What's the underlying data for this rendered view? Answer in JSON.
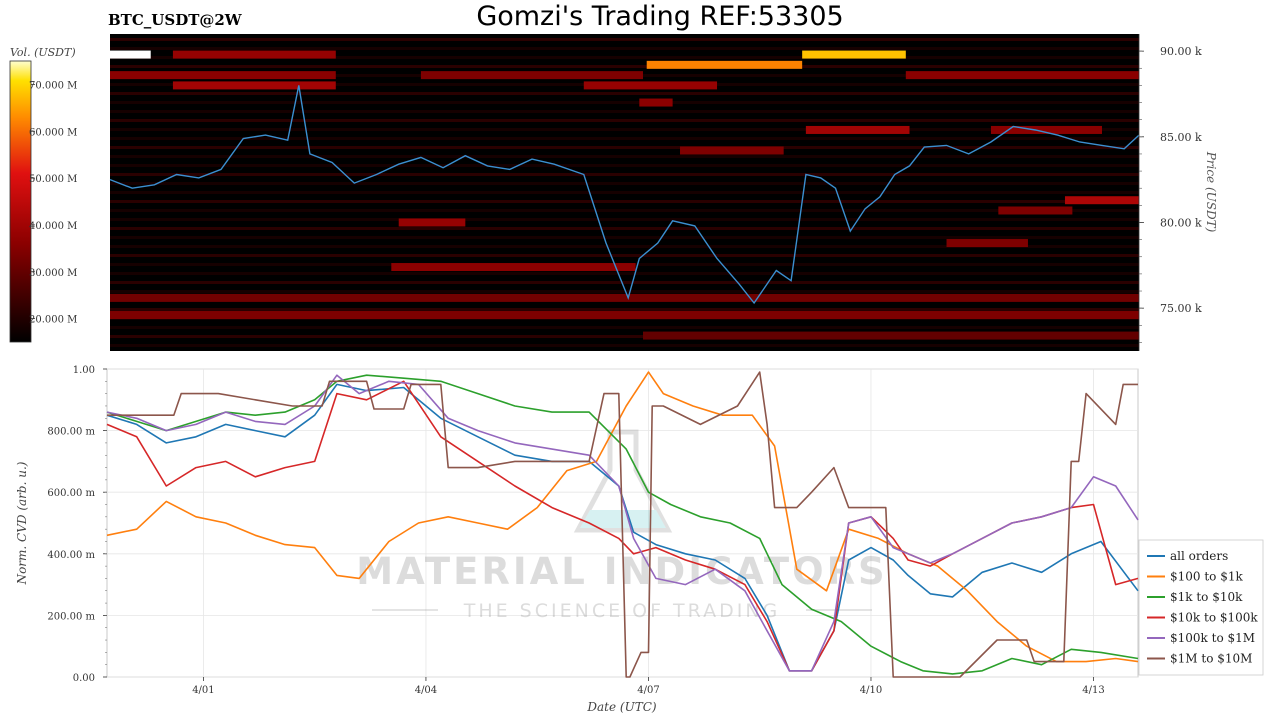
{
  "header": {
    "symbol": "BTC_USDT@2W",
    "title": "Gomzi's Trading REF:53305"
  },
  "watermark": {
    "main": "MATERIAL INDICATORS",
    "sub": "THE SCIENCE OF TRADING"
  },
  "colors": {
    "heatmap_bg": "#000000",
    "price_line": "#3b8fd0",
    "all_orders": "#1f77b4",
    "100_1k": "#ff7f0e",
    "1k_10k": "#2ca02c",
    "10k_100k": "#d62728",
    "100k_1m": "#9467bd",
    "1m_10m": "#8c564b"
  },
  "chart_data": [
    {
      "type": "heatmap",
      "colorbar": {
        "label": "Vol. (USDT)",
        "ticks": [
          "70.000 M",
          "60.000 M",
          "50.000 M",
          "40.000 M",
          "30.000 M",
          "20.000 M"
        ],
        "range": [
          15,
          75
        ]
      },
      "ylabel": "Price (USDT)",
      "ylim": [
        72500,
        91000
      ],
      "yticks": [
        "90.00 k",
        "85.00 k",
        "80.00 k",
        "75.00 k"
      ],
      "xlim": [
        0,
        13.9
      ],
      "price_series": {
        "name": "price",
        "x": [
          0,
          0.3,
          0.6,
          0.9,
          1.2,
          1.5,
          1.8,
          2.1,
          2.4,
          2.55,
          2.7,
          3.0,
          3.3,
          3.6,
          3.9,
          4.2,
          4.5,
          4.8,
          5.1,
          5.4,
          5.7,
          6.0,
          6.4,
          6.7,
          6.85,
          7.0,
          7.15,
          7.4,
          7.6,
          7.9,
          8.2,
          8.5,
          8.7,
          9.0,
          9.2,
          9.4,
          9.6,
          9.8,
          10.0,
          10.2,
          10.4,
          10.6,
          10.8,
          11.0,
          11.3,
          11.6,
          11.9,
          12.2,
          12.5,
          12.8,
          13.1,
          13.4,
          13.7,
          13.9
        ],
        "y": [
          82500,
          82000,
          82200,
          82800,
          82600,
          83100,
          84900,
          85100,
          84800,
          88000,
          84000,
          83500,
          82300,
          82800,
          83400,
          83800,
          83200,
          83900,
          83300,
          83100,
          83700,
          83400,
          82800,
          78800,
          77200,
          75600,
          77900,
          78800,
          80100,
          79800,
          77900,
          76400,
          75300,
          77200,
          76600,
          82800,
          82600,
          82000,
          79500,
          80800,
          81500,
          82800,
          83300,
          84400,
          84500,
          84000,
          84700,
          85600,
          85400,
          85100,
          84700,
          84500,
          84300,
          85100
        ]
      },
      "bands": [
        {
          "price": 89800,
          "x0": 0.0,
          "x1": 0.55,
          "value": 75
        },
        {
          "price": 89800,
          "x0": 0.85,
          "x1": 3.05,
          "value": 38
        },
        {
          "price": 89800,
          "x0": 9.35,
          "x1": 10.75,
          "value": 68
        },
        {
          "price": 89200,
          "x0": 7.25,
          "x1": 9.35,
          "value": 62
        },
        {
          "price": 88600,
          "x0": 0.0,
          "x1": 3.05,
          "value": 36
        },
        {
          "price": 88600,
          "x0": 4.2,
          "x1": 7.2,
          "value": 34
        },
        {
          "price": 88600,
          "x0": 10.75,
          "x1": 13.9,
          "value": 36
        },
        {
          "price": 88000,
          "x0": 0.85,
          "x1": 3.05,
          "value": 40
        },
        {
          "price": 88000,
          "x0": 6.4,
          "x1": 8.2,
          "value": 38
        },
        {
          "price": 87000,
          "x0": 7.15,
          "x1": 7.6,
          "value": 36
        },
        {
          "price": 85400,
          "x0": 9.4,
          "x1": 10.8,
          "value": 40
        },
        {
          "price": 85400,
          "x0": 11.9,
          "x1": 13.4,
          "value": 36
        },
        {
          "price": 84200,
          "x0": 7.7,
          "x1": 9.1,
          "value": 34
        },
        {
          "price": 81300,
          "x0": 12.9,
          "x1": 13.9,
          "value": 42
        },
        {
          "price": 80700,
          "x0": 12.0,
          "x1": 13.0,
          "value": 34
        },
        {
          "price": 80000,
          "x0": 3.9,
          "x1": 4.8,
          "value": 38
        },
        {
          "price": 78800,
          "x0": 11.3,
          "x1": 12.4,
          "value": 34
        },
        {
          "price": 77400,
          "x0": 3.8,
          "x1": 7.1,
          "value": 36
        },
        {
          "price": 75600,
          "x0": 0.0,
          "x1": 13.9,
          "value": 32
        },
        {
          "price": 74600,
          "x0": 0.0,
          "x1": 13.9,
          "value": 34
        },
        {
          "price": 73400,
          "x0": 7.2,
          "x1": 13.9,
          "value": 30
        }
      ]
    },
    {
      "type": "line",
      "xlabel": "Date (UTC)",
      "ylabel": "Norm. CVD (arb. u.)",
      "ylim": [
        0,
        1
      ],
      "xlim": [
        0,
        13.9
      ],
      "yticks": [
        "0.00",
        "200.00 m",
        "400.00 m",
        "600.00 m",
        "800.00 m",
        "1.00"
      ],
      "xticks": [
        {
          "label": "4/01",
          "x": 1.3
        },
        {
          "label": "4/04",
          "x": 4.3
        },
        {
          "label": "4/07",
          "x": 7.3
        },
        {
          "label": "4/10",
          "x": 10.3
        },
        {
          "label": "4/13",
          "x": 13.3
        }
      ],
      "legend_position": "lower-right",
      "series": [
        {
          "name": "all orders",
          "color": "#1f77b4",
          "x": [
            0,
            0.4,
            0.8,
            1.2,
            1.6,
            2.0,
            2.4,
            2.8,
            3.1,
            3.5,
            4.0,
            4.5,
            5.0,
            5.5,
            6.0,
            6.5,
            6.9,
            7.1,
            7.4,
            7.8,
            8.2,
            8.6,
            8.9,
            9.2,
            9.5,
            9.8,
            10.0,
            10.3,
            10.6,
            10.8,
            11.1,
            11.4,
            11.8,
            12.2,
            12.6,
            13.0,
            13.4,
            13.9
          ],
          "y": [
            0.85,
            0.82,
            0.76,
            0.78,
            0.82,
            0.8,
            0.78,
            0.85,
            0.95,
            0.93,
            0.94,
            0.84,
            0.78,
            0.72,
            0.7,
            0.7,
            0.62,
            0.47,
            0.43,
            0.4,
            0.38,
            0.32,
            0.2,
            0.02,
            0.02,
            0.15,
            0.38,
            0.42,
            0.38,
            0.33,
            0.27,
            0.26,
            0.34,
            0.37,
            0.34,
            0.4,
            0.44,
            0.28
          ]
        },
        {
          "name": "$100 to $1k",
          "color": "#ff7f0e",
          "x": [
            0,
            0.4,
            0.8,
            1.2,
            1.6,
            2.0,
            2.4,
            2.8,
            3.1,
            3.4,
            3.8,
            4.2,
            4.6,
            5.0,
            5.4,
            5.8,
            6.2,
            6.6,
            7.0,
            7.3,
            7.5,
            7.9,
            8.3,
            8.7,
            9.0,
            9.3,
            9.7,
            10.0,
            10.4,
            10.8,
            11.2,
            11.6,
            12.0,
            12.4,
            12.8,
            13.2,
            13.6,
            13.9
          ],
          "y": [
            0.46,
            0.48,
            0.57,
            0.52,
            0.5,
            0.46,
            0.43,
            0.42,
            0.33,
            0.32,
            0.44,
            0.5,
            0.52,
            0.5,
            0.48,
            0.55,
            0.67,
            0.7,
            0.88,
            0.99,
            0.92,
            0.88,
            0.85,
            0.85,
            0.75,
            0.35,
            0.28,
            0.48,
            0.45,
            0.4,
            0.36,
            0.28,
            0.18,
            0.1,
            0.05,
            0.05,
            0.06,
            0.05
          ]
        },
        {
          "name": "$1k to $10k",
          "color": "#2ca02c",
          "x": [
            0,
            0.4,
            0.8,
            1.2,
            1.6,
            2.0,
            2.4,
            2.8,
            3.1,
            3.5,
            4.0,
            4.5,
            5.0,
            5.5,
            6.0,
            6.5,
            7.0,
            7.3,
            7.6,
            8.0,
            8.4,
            8.8,
            9.1,
            9.5,
            9.9,
            10.3,
            10.7,
            11.0,
            11.4,
            11.8,
            12.2,
            12.6,
            13.0,
            13.4,
            13.9
          ],
          "y": [
            0.86,
            0.83,
            0.8,
            0.83,
            0.86,
            0.85,
            0.86,
            0.9,
            0.96,
            0.98,
            0.97,
            0.96,
            0.92,
            0.88,
            0.86,
            0.86,
            0.74,
            0.6,
            0.56,
            0.52,
            0.5,
            0.45,
            0.3,
            0.22,
            0.18,
            0.1,
            0.05,
            0.02,
            0.01,
            0.02,
            0.06,
            0.04,
            0.09,
            0.08,
            0.06
          ]
        },
        {
          "name": "$10k to $100k",
          "color": "#d62728",
          "x": [
            0,
            0.4,
            0.8,
            1.2,
            1.6,
            2.0,
            2.4,
            2.8,
            3.1,
            3.5,
            4.0,
            4.5,
            5.0,
            5.5,
            6.0,
            6.5,
            6.9,
            7.1,
            7.4,
            7.8,
            8.2,
            8.6,
            8.9,
            9.2,
            9.5,
            9.8,
            10.0,
            10.3,
            10.6,
            10.8,
            11.1,
            11.4,
            11.8,
            12.2,
            12.6,
            13.0,
            13.3,
            13.6,
            13.9
          ],
          "y": [
            0.82,
            0.78,
            0.62,
            0.68,
            0.7,
            0.65,
            0.68,
            0.7,
            0.92,
            0.9,
            0.96,
            0.78,
            0.7,
            0.62,
            0.55,
            0.5,
            0.45,
            0.4,
            0.42,
            0.38,
            0.35,
            0.3,
            0.18,
            0.02,
            0.02,
            0.15,
            0.5,
            0.52,
            0.45,
            0.38,
            0.36,
            0.4,
            0.45,
            0.5,
            0.52,
            0.55,
            0.56,
            0.3,
            0.32
          ]
        },
        {
          "name": "$100k to $1M",
          "color": "#9467bd",
          "x": [
            0,
            0.4,
            0.8,
            1.2,
            1.6,
            2.0,
            2.4,
            2.8,
            3.1,
            3.4,
            3.8,
            4.2,
            4.6,
            5.0,
            5.5,
            6.0,
            6.5,
            6.9,
            7.1,
            7.4,
            7.8,
            8.2,
            8.6,
            8.9,
            9.2,
            9.5,
            9.8,
            10.0,
            10.3,
            10.6,
            10.8,
            11.1,
            11.4,
            11.8,
            12.2,
            12.6,
            13.0,
            13.3,
            13.6,
            13.9
          ],
          "y": [
            0.86,
            0.84,
            0.8,
            0.82,
            0.86,
            0.83,
            0.82,
            0.88,
            0.98,
            0.92,
            0.96,
            0.95,
            0.84,
            0.8,
            0.76,
            0.74,
            0.72,
            0.62,
            0.45,
            0.32,
            0.3,
            0.35,
            0.28,
            0.15,
            0.02,
            0.02,
            0.18,
            0.5,
            0.52,
            0.42,
            0.4,
            0.37,
            0.4,
            0.45,
            0.5,
            0.52,
            0.55,
            0.65,
            0.62,
            0.51
          ]
        },
        {
          "name": "$1M to $10M",
          "color": "#8c564b",
          "x": [
            0,
            0.5,
            0.9,
            1.0,
            1.5,
            2.0,
            2.5,
            2.9,
            3.0,
            3.5,
            3.6,
            4.0,
            4.1,
            4.5,
            4.6,
            5.0,
            5.5,
            6.0,
            6.5,
            6.7,
            6.9,
            7.0,
            7.05,
            7.2,
            7.3,
            7.35,
            7.5,
            8.0,
            8.5,
            8.8,
            8.9,
            9.0,
            9.2,
            9.3,
            9.5,
            9.8,
            10.0,
            10.2,
            10.4,
            10.5,
            10.6,
            10.7,
            10.8,
            11.5,
            12.0,
            12.4,
            12.5,
            12.9,
            13.0,
            13.1,
            13.2,
            13.6,
            13.7,
            13.9
          ],
          "y": [
            0.85,
            0.85,
            0.85,
            0.92,
            0.92,
            0.9,
            0.88,
            0.88,
            0.96,
            0.96,
            0.87,
            0.87,
            0.95,
            0.95,
            0.68,
            0.68,
            0.7,
            0.7,
            0.7,
            0.92,
            0.92,
            0.0,
            0.0,
            0.08,
            0.08,
            0.88,
            0.88,
            0.82,
            0.88,
            0.99,
            0.82,
            0.55,
            0.55,
            0.55,
            0.6,
            0.68,
            0.55,
            0.55,
            0.55,
            0.55,
            0.0,
            0.0,
            0.0,
            0.0,
            0.12,
            0.12,
            0.05,
            0.05,
            0.7,
            0.7,
            0.92,
            0.82,
            0.95,
            0.95
          ]
        }
      ]
    }
  ]
}
